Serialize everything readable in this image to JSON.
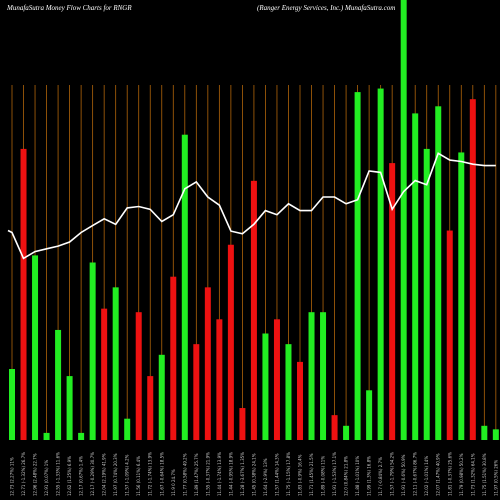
{
  "header": {
    "title": "MunafaSutra  Money Flow  Charts for RNGR",
    "company": "(Ranger Energy Services,  Inc.) MunafaSutra.com"
  },
  "colors": {
    "background": "#000000",
    "gridline": "#b0640a",
    "bar_up": "#22ee22",
    "bar_down": "#ee1111",
    "price_line": "#ffffff"
  },
  "chart_data": {
    "type": "bar",
    "title": "MunafaSutra  Money Flow  Charts for RNGR",
    "subtitle": "(Ranger Energy Services,  Inc.) MunafaSutra.com",
    "xlabel": "",
    "ylabel": "",
    "grid": true,
    "categories": [
      "12.73 (2.27%) 11%",
      "12.71 (-1.32%) 26.7%",
      "12.96 (2.48%) 22.7%",
      "12.91 (0.07%) 1%",
      "12.55 (-1.33%) 11.6%",
      "12.62 (1.25%) 6.9%",
      "12.17 (0.67%) 1.4%",
      "12.17 (-0.29%) 30.7%",
      "12.04 (2.19%) 41.9%",
      "11.97 (0.74%) 20.3%",
      "11.57 (-1.09%) 4.2%",
      "11.56 (0.11%) 6.4%",
      "11.72 (-1.74%) 13.9%",
      "11.67 (-0.64%) 18.5%",
      "11.9   0   24.7%",
      "11.77 (0.58%) 49.2%",
      "11.89 (1.47%) 25.7%",
      "11.55 (-0.37%) 21.9%",
      "11.44 (-1.74%) 13.9%",
      "11.44 (-0.95%) 18.9%",
      "11.28 (-3.67%) 1.35%",
      "11.45 (0.38%) 24.1%",
      "11.64 (-2.9%) 13%",
      "11.57 (1.44%) 14.3%",
      "11.75 (-1.15%) 17.8%",
      "11.83 (-0.9%) 16.4%",
      "11.71 (1.45%) 21.5%",
      "11.89 (-0.08%) 11%",
      "11.91 (-1.53%) 17.1%",
      "12.0 (0.84%) 21.8%",
      "11.88 (-1.01%) 10%",
      "11.99 (1.3%) 16.8%",
      "11.7 (-0.84%) 2.7%",
      "11.57 (-1.79%) 54.2%",
      "11.91 (-0.6%) 50.9%",
      "12.11 (-0.67%) 86.7%",
      "12.02 (-1.01%) 14%",
      "12.07 (1.47%) 40.9%",
      "11.81 (-0.37%) 25.6%",
      "11.79 (0.98%) 50.2%",
      "11.73 (1.32%) 64.1%",
      "11.75 (1.51%) 30.8%",
      "11.97 (0.5%) 26%"
    ],
    "values": [
      20,
      82,
      52,
      2,
      31,
      18,
      2,
      50,
      37,
      43,
      6,
      36,
      18,
      24,
      46,
      86,
      27,
      43,
      34,
      55,
      9,
      73,
      30,
      34,
      27,
      22,
      36,
      36,
      7,
      4,
      98,
      14,
      99,
      78,
      100,
      92,
      82,
      94,
      59,
      81,
      96,
      4,
      3
    ],
    "directions": [
      "up",
      "down",
      "up",
      "up",
      "up",
      "up",
      "up",
      "up",
      "down",
      "up",
      "up",
      "down",
      "down",
      "up",
      "down",
      "up",
      "down",
      "down",
      "down",
      "down",
      "down",
      "down",
      "up",
      "down",
      "up",
      "down",
      "up",
      "up",
      "down",
      "up",
      "up",
      "up",
      "up",
      "down",
      "up",
      "up",
      "up",
      "up",
      "down",
      "up",
      "down",
      "up",
      "up"
    ],
    "price_line": [
      11.52,
      11.33,
      11.38,
      11.4,
      11.42,
      11.45,
      11.52,
      11.57,
      11.62,
      11.58,
      11.7,
      11.71,
      11.69,
      11.6,
      11.65,
      11.84,
      11.89,
      11.78,
      11.72,
      11.53,
      11.51,
      11.58,
      11.68,
      11.65,
      11.73,
      11.68,
      11.68,
      11.78,
      11.78,
      11.73,
      11.76,
      11.97,
      11.96,
      11.69,
      11.82,
      11.9,
      11.87,
      12.1,
      12.05,
      12.04,
      12.02,
      12.01,
      12.01
    ]
  }
}
